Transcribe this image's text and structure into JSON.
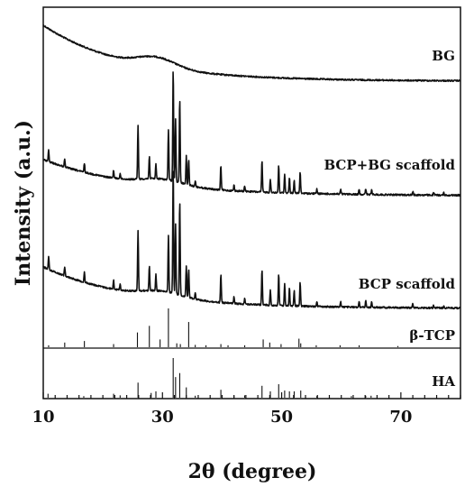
{
  "chart_data": {
    "type": "line",
    "xlabel": "2θ (degree)",
    "ylabel": "Intensity (a.u.)",
    "xlim": [
      10,
      80
    ],
    "xticks": [
      10,
      30,
      50,
      70
    ],
    "ticks_every": 2,
    "series": [
      {
        "name": "BG"
      },
      {
        "name": "BCP+BG scaffold"
      },
      {
        "name": "BCP scaffold"
      },
      {
        "name": "β-TCP"
      },
      {
        "name": "HA"
      }
    ],
    "peaks_crystalline": [
      [
        10.9,
        0.1
      ],
      [
        13.6,
        0.07
      ],
      [
        16.9,
        0.08
      ],
      [
        21.8,
        0.07
      ],
      [
        22.9,
        0.05
      ],
      [
        25.9,
        0.48
      ],
      [
        27.8,
        0.2
      ],
      [
        28.9,
        0.13
      ],
      [
        31.0,
        0.45
      ],
      [
        31.8,
        1.0
      ],
      [
        32.2,
        0.55
      ],
      [
        32.9,
        0.75
      ],
      [
        34.0,
        0.25
      ],
      [
        34.4,
        0.22
      ],
      [
        35.5,
        0.05
      ],
      [
        39.8,
        0.22
      ],
      [
        42.0,
        0.05
      ],
      [
        43.8,
        0.05
      ],
      [
        46.7,
        0.28
      ],
      [
        48.1,
        0.12
      ],
      [
        49.5,
        0.25
      ],
      [
        50.5,
        0.17
      ],
      [
        51.3,
        0.14
      ],
      [
        52.1,
        0.12
      ],
      [
        53.1,
        0.19
      ],
      [
        55.9,
        0.04
      ],
      [
        59.9,
        0.04
      ],
      [
        63.0,
        0.05
      ],
      [
        64.1,
        0.05
      ],
      [
        65.1,
        0.04
      ],
      [
        72.0,
        0.03
      ],
      [
        75.5,
        0.02
      ],
      [
        77.2,
        0.02
      ]
    ],
    "reference_TCP": [
      [
        10.9,
        0.05
      ],
      [
        13.6,
        0.12
      ],
      [
        16.9,
        0.16
      ],
      [
        21.8,
        0.08
      ],
      [
        25.8,
        0.38
      ],
      [
        27.8,
        0.55
      ],
      [
        29.6,
        0.2
      ],
      [
        31.0,
        1.0
      ],
      [
        32.4,
        0.1
      ],
      [
        33.0,
        0.08
      ],
      [
        34.4,
        0.65
      ],
      [
        35.5,
        0.06
      ],
      [
        37.3,
        0.05
      ],
      [
        39.8,
        0.08
      ],
      [
        41.0,
        0.05
      ],
      [
        43.8,
        0.05
      ],
      [
        46.9,
        0.2
      ],
      [
        48.0,
        0.12
      ],
      [
        49.9,
        0.08
      ],
      [
        52.9,
        0.22
      ],
      [
        53.2,
        0.1
      ],
      [
        55.8,
        0.05
      ],
      [
        59.8,
        0.05
      ],
      [
        63.0,
        0.05
      ],
      [
        69.5,
        0.03
      ]
    ],
    "reference_HA": [
      [
        10.8,
        0.1
      ],
      [
        16.8,
        0.04
      ],
      [
        21.8,
        0.1
      ],
      [
        22.9,
        0.06
      ],
      [
        25.9,
        0.38
      ],
      [
        28.1,
        0.12
      ],
      [
        28.9,
        0.16
      ],
      [
        31.8,
        1.0
      ],
      [
        32.2,
        0.52
      ],
      [
        32.9,
        0.62
      ],
      [
        34.0,
        0.26
      ],
      [
        35.5,
        0.05
      ],
      [
        39.8,
        0.2
      ],
      [
        42.0,
        0.05
      ],
      [
        43.8,
        0.06
      ],
      [
        46.7,
        0.3
      ],
      [
        48.1,
        0.16
      ],
      [
        49.5,
        0.34
      ],
      [
        50.5,
        0.18
      ],
      [
        51.3,
        0.16
      ],
      [
        52.1,
        0.16
      ],
      [
        53.2,
        0.18
      ],
      [
        55.9,
        0.04
      ],
      [
        61.7,
        0.04
      ],
      [
        64.1,
        0.05
      ],
      [
        65.0,
        0.05
      ]
    ]
  }
}
